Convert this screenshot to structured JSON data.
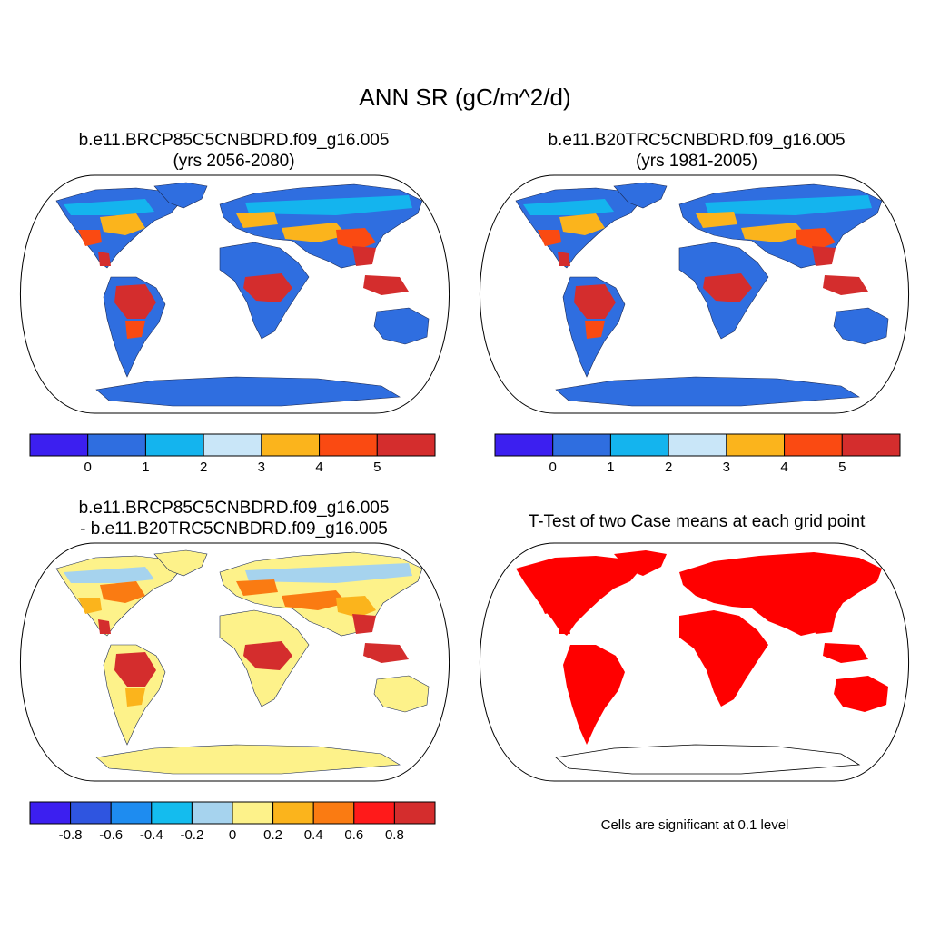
{
  "main_title": "ANN SR (gC/m^2/d)",
  "panels": {
    "top_left": {
      "title_line1": "b.e11.BRCP85C5CNBDRD.f09_g16.005",
      "title_line2": "(yrs 2056-2080)"
    },
    "top_right": {
      "title_line1": "b.e11.B20TRC5CNBDRD.f09_g16.005",
      "title_line2": "(yrs 1981-2005)"
    },
    "bottom_left": {
      "title_line1": "b.e11.BRCP85C5CNBDRD.f09_g16.005",
      "title_line2": "- b.e11.B20TRC5CNBDRD.f09_g16.005"
    },
    "bottom_right": {
      "title_line1": "T-Test of two Case means at each grid point",
      "note": "Cells are significant at 0.1 level"
    }
  },
  "colorbars": {
    "absolute": {
      "colors": [
        "#3c1ff0",
        "#2f6ee0",
        "#14b4ee",
        "#c9e6f8",
        "#fbb41c",
        "#fa4a12",
        "#d42d2d"
      ],
      "labels": [
        "0",
        "1",
        "2",
        "3",
        "4",
        "5"
      ]
    },
    "difference": {
      "colors": [
        "#3c1ff0",
        "#2f55e0",
        "#1e8cf0",
        "#14bcee",
        "#a6d3ee",
        "#fdf28a",
        "#fbb41c",
        "#fa7b12",
        "#ff1a1a",
        "#d42d2d"
      ],
      "labels": [
        "-0.8",
        "-0.6",
        "-0.4",
        "-0.2",
        "0",
        "0.2",
        "0.4",
        "0.6",
        "0.8"
      ]
    }
  },
  "map_fills": {
    "top_left": {
      "land": "#2f6ee0",
      "tropics": "#d42d2d",
      "temperate": "#fbb41c",
      "subtropics": "#fa4a12",
      "boreal": "#14b4ee",
      "antarctica": "#2f6ee0"
    },
    "top_right": {
      "land": "#2f6ee0",
      "tropics": "#d42d2d",
      "temperate": "#fbb41c",
      "subtropics": "#fa4a12",
      "boreal": "#14b4ee",
      "antarctica": "#2f6ee0"
    },
    "bottom_left": {
      "land": "#fdf28a",
      "tropics": "#d42d2d",
      "temperate": "#fa7b12",
      "subtropics": "#fbb41c",
      "boreal": "#a6d3ee",
      "antarctica": "#fdf28a"
    },
    "bottom_right": {
      "land": "#ff0000",
      "tropics": "#ff0000",
      "temperate": "#ff0000",
      "subtropics": "#ff0000",
      "boreal": "#ff0000",
      "antarctica": "#ffffff"
    }
  }
}
